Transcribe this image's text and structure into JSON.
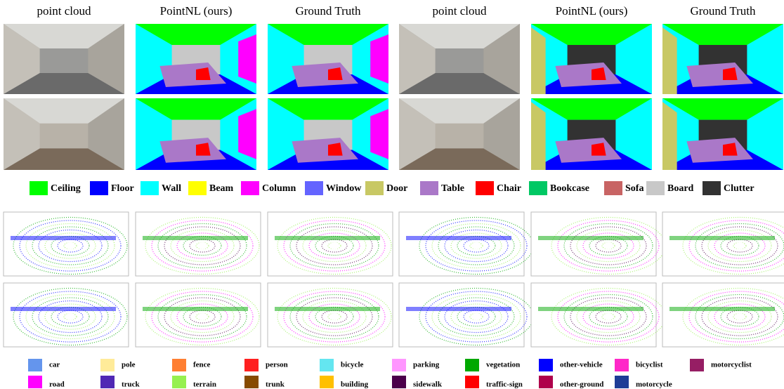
{
  "headers": [
    "point cloud",
    "PointNL (ours)",
    "Ground Truth",
    "point cloud",
    "PointNL (ours)",
    "Ground Truth"
  ],
  "indoor_legend": [
    {
      "label": "Ceiling",
      "color": "#00ff00"
    },
    {
      "label": "Floor",
      "color": "#0000ff"
    },
    {
      "label": "Wall",
      "color": "#00ffff"
    },
    {
      "label": "Beam",
      "color": "#ffff00"
    },
    {
      "label": "Column",
      "color": "#ff00ff"
    },
    {
      "label": "Window",
      "color": "#6464ff"
    },
    {
      "label": "Door",
      "color": "#c8c864"
    },
    {
      "label": "Table",
      "color": "#aa78c8"
    },
    {
      "label": "Chair",
      "color": "#ff0000"
    },
    {
      "label": "Bookcase",
      "color": "#00c864"
    },
    {
      "label": "Sofa",
      "color": "#c86464"
    },
    {
      "label": "Board",
      "color": "#c8c8c8"
    },
    {
      "label": "Clutter",
      "color": "#323232"
    }
  ],
  "outdoor_legend": [
    [
      {
        "label": "car",
        "color": "#6495ed"
      },
      {
        "label": "pole",
        "color": "#ffeb99"
      },
      {
        "label": "fence",
        "color": "#ff7f32"
      },
      {
        "label": "person",
        "color": "#ff2020"
      },
      {
        "label": "bicycle",
        "color": "#64e6f0"
      },
      {
        "label": "parking",
        "color": "#ff96ff"
      },
      {
        "label": "vegetation",
        "color": "#00a800"
      },
      {
        "label": "other-vehicle",
        "color": "#0000ff"
      },
      {
        "label": "bicyclist",
        "color": "#ff28c8"
      },
      {
        "label": "motorcyclist",
        "color": "#961e64"
      }
    ],
    [
      {
        "label": "road",
        "color": "#ff00ff"
      },
      {
        "label": "truck",
        "color": "#5028b4"
      },
      {
        "label": "terrain",
        "color": "#96f050"
      },
      {
        "label": "trunk",
        "color": "#874b00"
      },
      {
        "label": "building",
        "color": "#ffc000"
      },
      {
        "label": "sidewalk",
        "color": "#4b004b"
      },
      {
        "label": "traffic-sign",
        "color": "#ff0000"
      },
      {
        "label": "other-ground",
        "color": "#af004b"
      },
      {
        "label": "motorcycle",
        "color": "#1e3c96"
      }
    ]
  ]
}
